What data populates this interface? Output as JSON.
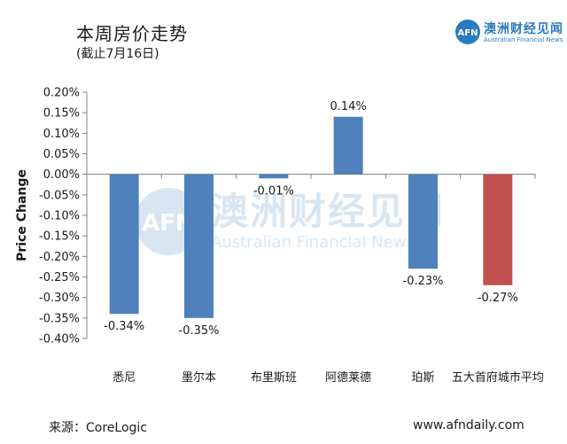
{
  "header": {
    "title": "本周房价走势",
    "subtitle": "(截止7月16日)"
  },
  "brand": {
    "logo_text": "AFN",
    "name_cn": "澳洲财经见闻",
    "name_en": "Australian Financial News"
  },
  "footer": {
    "source": "来源：CoreLogic",
    "site": "www.afndaily.com"
  },
  "watermark": {
    "logo_text": "AFN",
    "name_cn": "澳洲财经见闻",
    "name_en": "Australian Financial News"
  },
  "colors": {
    "bar_blue": "#4f81bd",
    "bar_red": "#c0504d",
    "axis": "#808080",
    "brand": "#2b7bbf"
  },
  "chart_data": {
    "type": "bar",
    "ylabel": "Price Change",
    "xlabel": "",
    "ylim": [
      -0.4,
      0.2
    ],
    "yticks": [
      0.2,
      0.15,
      0.1,
      0.05,
      0.0,
      -0.05,
      -0.1,
      -0.15,
      -0.2,
      -0.25,
      -0.3,
      -0.35,
      -0.4
    ],
    "ytick_labels": [
      "0.20%",
      "0.15%",
      "0.10%",
      "0.05%",
      "0.00%",
      "-0.05%",
      "-0.10%",
      "-0.15%",
      "-0.20%",
      "-0.25%",
      "-0.30%",
      "-0.35%",
      "-0.40%"
    ],
    "categories": [
      "悉尼",
      "墨尔本",
      "布里斯班",
      "阿德莱德",
      "珀斯",
      "五大首府城市平均"
    ],
    "values": [
      -0.34,
      -0.35,
      -0.01,
      0.14,
      -0.23,
      -0.27
    ],
    "value_labels": [
      "-0.34%",
      "-0.35%",
      "-0.01%",
      "0.14%",
      "-0.23%",
      "-0.27%"
    ],
    "bar_colors": [
      "#4f81bd",
      "#4f81bd",
      "#4f81bd",
      "#4f81bd",
      "#4f81bd",
      "#c0504d"
    ],
    "grid": false,
    "legend": "none"
  }
}
